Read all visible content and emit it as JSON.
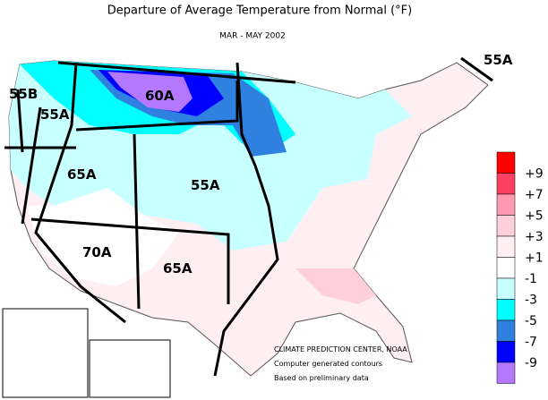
{
  "header": {
    "title": "Departure of Average Temperature from Normal (°F)",
    "subtitle": "MAR - MAY 2002"
  },
  "map_labels": [
    "55B",
    "55A",
    "60A",
    "65A",
    "55A",
    "70A",
    "65A",
    "55A"
  ],
  "legend": [
    {
      "label": "+9",
      "color": "#ff0000"
    },
    {
      "label": "+7",
      "color": "#ff4060"
    },
    {
      "label": "+5",
      "color": "#ff9ab0"
    },
    {
      "label": "+3",
      "color": "#ffd0dc"
    },
    {
      "label": "+1",
      "color": "#ffeef2"
    },
    {
      "label": "-1",
      "color": "#ffffff"
    },
    {
      "label": "-3",
      "color": "#c8ffff"
    },
    {
      "label": "-5",
      "color": "#00ffff"
    },
    {
      "label": "-7",
      "color": "#3080e0"
    },
    {
      "label": "-9",
      "color": "#0000ff"
    }
  ],
  "legend_bottom_color": "#b478ff",
  "credits": [
    "CLIMATE PREDICTION CENTER, NOAA",
    "Computer generated contours",
    "Based on preliminary data"
  ]
}
